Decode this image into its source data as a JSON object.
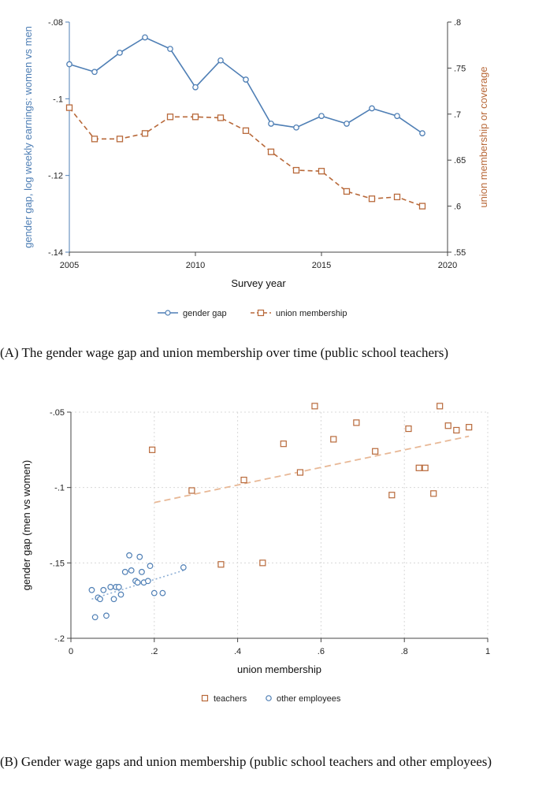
{
  "chart_data": [
    {
      "type": "line",
      "xlabel": "Survey year",
      "ylabel_left": "gender gap, log weekly earnings: women vs men",
      "ylabel_right": "union membership or coverage",
      "xlim": [
        2005,
        2020
      ],
      "ylim_left": [
        -0.14,
        -0.08
      ],
      "ylim_right": [
        0.55,
        0.8
      ],
      "x_ticks": [
        "2005",
        "2010",
        "2015",
        "2020"
      ],
      "y_ticks_left": [
        "-.14",
        "-.12",
        "-.1",
        "-.08"
      ],
      "y_ticks_right": [
        ".55",
        ".6",
        ".65",
        ".7",
        ".75",
        ".8"
      ],
      "legend_position": "bottom",
      "grid": false,
      "series": [
        {
          "name": "gender gap",
          "axis": "left",
          "color": "#4f7fb5",
          "marker": "circle",
          "x": [
            2005,
            2006,
            2007,
            2008,
            2009,
            2010,
            2011,
            2012,
            2013,
            2014,
            2015,
            2016,
            2017,
            2018,
            2019
          ],
          "y": [
            -0.091,
            -0.093,
            -0.088,
            -0.084,
            -0.087,
            -0.097,
            -0.09,
            -0.095,
            -0.1065,
            -0.1075,
            -0.1045,
            -0.1065,
            -0.1025,
            -0.1045,
            -0.109
          ]
        },
        {
          "name": "union membership",
          "axis": "right",
          "color": "#b8693a",
          "marker": "square",
          "x": [
            2005,
            2006,
            2007,
            2008,
            2009,
            2010,
            2011,
            2012,
            2013,
            2014,
            2015,
            2016,
            2017,
            2018,
            2019
          ],
          "y": [
            0.707,
            0.673,
            0.673,
            0.679,
            0.697,
            0.697,
            0.696,
            0.682,
            0.659,
            0.639,
            0.638,
            0.616,
            0.608,
            0.61,
            0.6
          ]
        }
      ]
    },
    {
      "type": "scatter",
      "xlabel": "union membership",
      "ylabel": "gender gap (men vs women)",
      "xlim": [
        0,
        1
      ],
      "ylim": [
        -0.2,
        -0.05
      ],
      "x_ticks": [
        "0",
        ".2",
        ".4",
        ".6",
        ".8",
        "1"
      ],
      "y_ticks": [
        "-.2",
        "-.15",
        "-.1",
        "-.05"
      ],
      "legend_position": "bottom",
      "grid": true,
      "series": [
        {
          "name": "teachers",
          "color": "#b8693a",
          "marker": "square",
          "x": [
            0.195,
            0.29,
            0.36,
            0.415,
            0.46,
            0.51,
            0.55,
            0.585,
            0.63,
            0.685,
            0.73,
            0.77,
            0.81,
            0.835,
            0.85,
            0.87,
            0.885,
            0.905,
            0.925,
            0.955
          ],
          "y": [
            -0.075,
            -0.102,
            -0.151,
            -0.095,
            -0.15,
            -0.071,
            -0.09,
            -0.046,
            -0.068,
            -0.057,
            -0.076,
            -0.105,
            -0.061,
            -0.087,
            -0.087,
            -0.104,
            -0.046,
            -0.059,
            -0.062,
            -0.06
          ],
          "fit": {
            "x": [
              0.2,
              0.955
            ],
            "y": [
              -0.11,
              -0.066
            ]
          }
        },
        {
          "name": "other employees",
          "color": "#4f7fb5",
          "marker": "circle",
          "x": [
            0.05,
            0.058,
            0.065,
            0.07,
            0.078,
            0.085,
            0.095,
            0.103,
            0.108,
            0.115,
            0.12,
            0.13,
            0.14,
            0.145,
            0.155,
            0.16,
            0.165,
            0.17,
            0.175,
            0.185,
            0.19,
            0.2,
            0.22,
            0.27
          ],
          "y": [
            -0.168,
            -0.186,
            -0.173,
            -0.174,
            -0.168,
            -0.185,
            -0.166,
            -0.174,
            -0.166,
            -0.166,
            -0.171,
            -0.156,
            -0.145,
            -0.155,
            -0.162,
            -0.163,
            -0.146,
            -0.156,
            -0.163,
            -0.162,
            -0.152,
            -0.17,
            -0.17,
            -0.153
          ],
          "fit": {
            "x": [
              0.05,
              0.27
            ],
            "y": [
              -0.174,
              -0.155
            ]
          }
        }
      ]
    }
  ],
  "captions": {
    "a": "(A) The gender wage gap and union membership over time (public school teachers)",
    "b": "(B) Gender wage gaps and union membership (public school teachers and other employees)"
  }
}
